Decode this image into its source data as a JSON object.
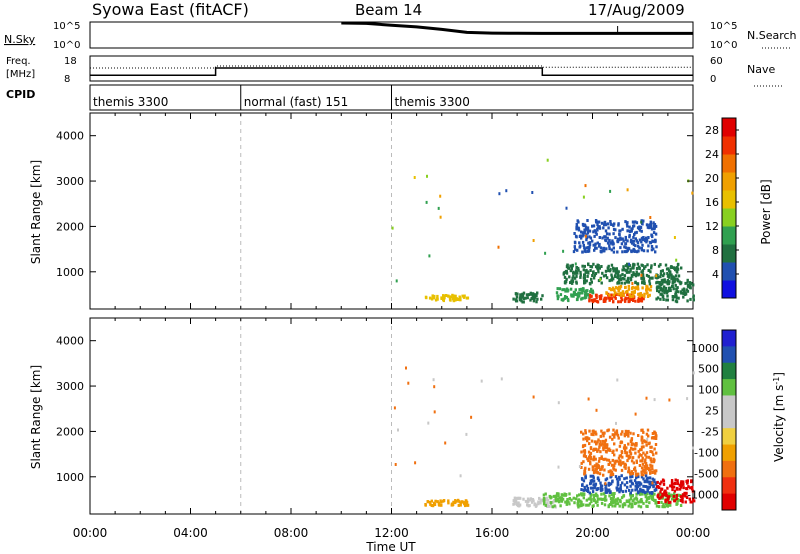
{
  "header": {
    "title": "Syowa East (fitACF)",
    "beam": "Beam 14",
    "date": "17/Aug/2009"
  },
  "sky_panel": {
    "left_label": "N.Sky",
    "left_ticks": [
      "10^5",
      "10^0"
    ],
    "right_label": "N.Search",
    "right_ticks": [
      "10^5",
      "10^0"
    ]
  },
  "freq_panel": {
    "left_label_line1": "Freq.",
    "left_label_line2": "[MHz]",
    "left_ticks": [
      "18",
      "8"
    ],
    "right_label": "Nave",
    "right_ticks": [
      "60",
      "0"
    ]
  },
  "cpid_panel": {
    "label": "CPID",
    "segments": [
      {
        "start_hour": 0,
        "end_hour": 6,
        "text": "themis 3300"
      },
      {
        "start_hour": 6,
        "end_hour": 12,
        "text": "normal (fast) 151"
      },
      {
        "start_hour": 12,
        "end_hour": 24,
        "text": "themis 3300"
      }
    ]
  },
  "colors": {
    "power_scale": [
      "#1010e0",
      "#2050b0",
      "#207040",
      "#30a050",
      "#88d020",
      "#e8c000",
      "#f0a000",
      "#f07000",
      "#f03000",
      "#e00000"
    ],
    "velocity_scale": [
      "#e00000",
      "#f03010",
      "#f07010",
      "#f0a000",
      "#f0d040",
      "#c8c8c8",
      "#c8c8c8",
      "#60c040",
      "#208040",
      "#2050b0",
      "#2020d0"
    ]
  },
  "chart_data": [
    {
      "type": "line",
      "panel": "sky_noise",
      "x_unit": "hours UT",
      "x": [
        0,
        1,
        2,
        3,
        4,
        5,
        6,
        7,
        8,
        9,
        10,
        11,
        12,
        13,
        14,
        15,
        16,
        17,
        18,
        19,
        20,
        21,
        22,
        23,
        24
      ],
      "series": [
        {
          "name": "N.Sky",
          "values": [
            null,
            null,
            null,
            null,
            null,
            null,
            null,
            null,
            null,
            null,
            500000,
            400000,
            150000,
            60000,
            15000,
            3000,
            2000,
            1800,
            1700,
            1700,
            1700,
            1700,
            1700,
            1700,
            1700
          ]
        }
      ]
    },
    {
      "type": "line",
      "panel": "frequency",
      "x": [
        0,
        5,
        5,
        18,
        18,
        24
      ],
      "series": [
        {
          "name": "Freq.",
          "values": [
            10,
            10,
            13,
            13,
            10,
            10
          ]
        },
        {
          "name": "Nave",
          "values": [
            30,
            30,
            35,
            35,
            32,
            32
          ]
        }
      ],
      "ylim_left": [
        8,
        18
      ],
      "ylim_right": [
        0,
        60
      ]
    },
    {
      "type": "heatmap",
      "panel": "power",
      "xlabel": "",
      "ylabel": "Slant Range [km]",
      "xlim": [
        0,
        24
      ],
      "ylim": [
        180,
        4500
      ],
      "y_ticks": [
        1000,
        2000,
        3000,
        4000
      ],
      "colorbar_label": "Power [dB]",
      "colorbar_ticks": [
        4,
        8,
        12,
        16,
        20,
        24,
        28
      ],
      "colorbar_range": [
        0,
        30
      ],
      "echo_regions": [
        {
          "t": [
            13.3,
            15.0
          ],
          "r": [
            330,
            450
          ],
          "val": 16
        },
        {
          "t": [
            16.8,
            18.0
          ],
          "r": [
            300,
            500
          ],
          "val": 6
        },
        {
          "t": [
            18.5,
            20.0
          ],
          "r": [
            330,
            600
          ],
          "val": 10
        },
        {
          "t": [
            19.8,
            22.0
          ],
          "r": [
            300,
            480
          ],
          "val": 26
        },
        {
          "t": [
            20.5,
            22.3
          ],
          "r": [
            420,
            650
          ],
          "val": 19
        },
        {
          "t": [
            18.8,
            23.5
          ],
          "r": [
            700,
            1150
          ],
          "val": 6
        },
        {
          "t": [
            19.2,
            22.5
          ],
          "r": [
            1400,
            2100
          ],
          "val": 4
        },
        {
          "t": [
            22.5,
            24.0
          ],
          "r": [
            300,
            800
          ],
          "val": 8
        }
      ]
    },
    {
      "type": "heatmap",
      "panel": "velocity",
      "xlabel": "Time UT",
      "ylabel": "Slant Range [km]",
      "xlim": [
        0,
        24
      ],
      "ylim": [
        180,
        4500
      ],
      "x_ticks": [
        "00:00",
        "04:00",
        "08:00",
        "12:00",
        "16:00",
        "20:00",
        "00:00"
      ],
      "y_ticks": [
        1000,
        2000,
        3000,
        4000
      ],
      "colorbar_label": "Velocity [m s^-1]",
      "colorbar_ticks": [
        "1000",
        "500",
        "100",
        "25",
        "-25",
        "-100",
        "-500",
        "-1000"
      ],
      "echo_regions": [
        {
          "t": [
            13.3,
            15.0
          ],
          "r": [
            330,
            450
          ],
          "val": "-100"
        },
        {
          "t": [
            16.8,
            18.5
          ],
          "r": [
            300,
            500
          ],
          "val": "25"
        },
        {
          "t": [
            18.0,
            23.5
          ],
          "r": [
            300,
            600
          ],
          "val": "100"
        },
        {
          "t": [
            19.5,
            22.5
          ],
          "r": [
            600,
            1000
          ],
          "val": "500"
        },
        {
          "t": [
            19.5,
            22.5
          ],
          "r": [
            1000,
            2000
          ],
          "val": "-500"
        },
        {
          "t": [
            22.5,
            24.0
          ],
          "r": [
            400,
            900
          ],
          "val": "-1000"
        }
      ]
    }
  ]
}
